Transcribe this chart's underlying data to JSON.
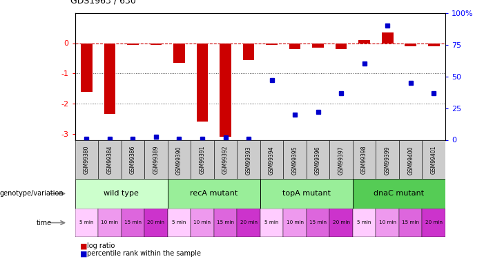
{
  "title": "GDS1963 / 630",
  "samples": [
    "GSM99380",
    "GSM99384",
    "GSM99386",
    "GSM99389",
    "GSM99390",
    "GSM99391",
    "GSM99392",
    "GSM99393",
    "GSM99394",
    "GSM99395",
    "GSM99396",
    "GSM99397",
    "GSM99398",
    "GSM99399",
    "GSM99400",
    "GSM99401"
  ],
  "log_ratio": [
    -1.6,
    -2.35,
    -0.05,
    -0.05,
    -0.65,
    -2.6,
    -3.1,
    -0.55,
    -0.05,
    -0.2,
    -0.15,
    -0.2,
    0.1,
    0.35,
    -0.1,
    -0.1
  ],
  "percentile": [
    1,
    1,
    1,
    2.5,
    1,
    1,
    2,
    1,
    47,
    20,
    22,
    37,
    60,
    90,
    45,
    37
  ],
  "ylim_left": [
    -3.2,
    1.0
  ],
  "ylim_right": [
    0,
    100
  ],
  "genotype_groups": [
    {
      "label": "wild type",
      "start": 0,
      "end": 4,
      "color": "#ccffcc"
    },
    {
      "label": "recA mutant",
      "start": 4,
      "end": 8,
      "color": "#99ee99"
    },
    {
      "label": "topA mutant",
      "start": 8,
      "end": 12,
      "color": "#99ee99"
    },
    {
      "label": "dnaC mutant",
      "start": 12,
      "end": 16,
      "color": "#55cc55"
    }
  ],
  "time_labels": [
    "5 min",
    "10 min",
    "15 min",
    "20 min",
    "5 min",
    "10 min",
    "15 min",
    "20 min",
    "5 min",
    "10 min",
    "15 min",
    "20 min",
    "5 min",
    "10 min",
    "15 min",
    "20 min"
  ],
  "time_color_cycle": [
    "#ffccff",
    "#ee99ee",
    "#dd66dd",
    "#cc33cc"
  ],
  "bar_color": "#cc0000",
  "dot_color": "#0000cc",
  "hline_color": "#cc0000",
  "dotted_line_color": "#555555",
  "sample_box_color": "#cccccc",
  "legend_items": [
    {
      "label": "log ratio",
      "color": "#cc0000",
      "marker": "square"
    },
    {
      "label": "percentile rank within the sample",
      "color": "#0000cc",
      "marker": "square"
    }
  ]
}
